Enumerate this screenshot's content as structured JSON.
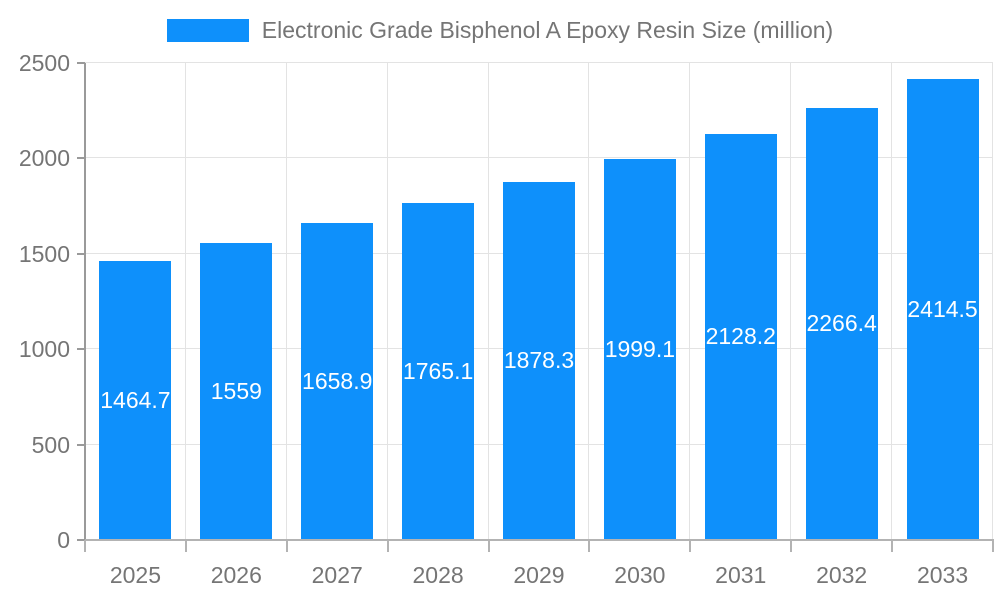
{
  "legend": {
    "label": "Electronic Grade Bisphenol A Epoxy Resin Size (million)"
  },
  "chart_data": {
    "type": "bar",
    "title": "Electronic Grade Bisphenol A Epoxy Resin Size (million)",
    "series_name": "Electronic Grade Bisphenol A Epoxy Resin Size (million)",
    "categories": [
      "2025",
      "2026",
      "2027",
      "2028",
      "2029",
      "2030",
      "2031",
      "2032",
      "2033"
    ],
    "values": [
      1464.7,
      1559,
      1658.9,
      1765.1,
      1878.3,
      1999.1,
      2128.2,
      2266.4,
      2414.5
    ],
    "data_labels": [
      "1464.7",
      "1559",
      "1658.9",
      "1765.1",
      "1878.3",
      "1999.1",
      "2128.2",
      "2266.4",
      "2414.5"
    ],
    "xlabel": "",
    "ylabel": "",
    "ylim": [
      0,
      2500
    ],
    "yticks": [
      0,
      500,
      1000,
      1500,
      2000,
      2500
    ],
    "grid": true,
    "legend_position": "top center",
    "data_label_position": "inside middle"
  },
  "colors": {
    "bar": "#0e90fb",
    "bar_label": "#ffffff",
    "tick_label": "#757575",
    "axis": "#9a9a9a",
    "grid": "#e3e3e3",
    "background": "#ffffff"
  }
}
